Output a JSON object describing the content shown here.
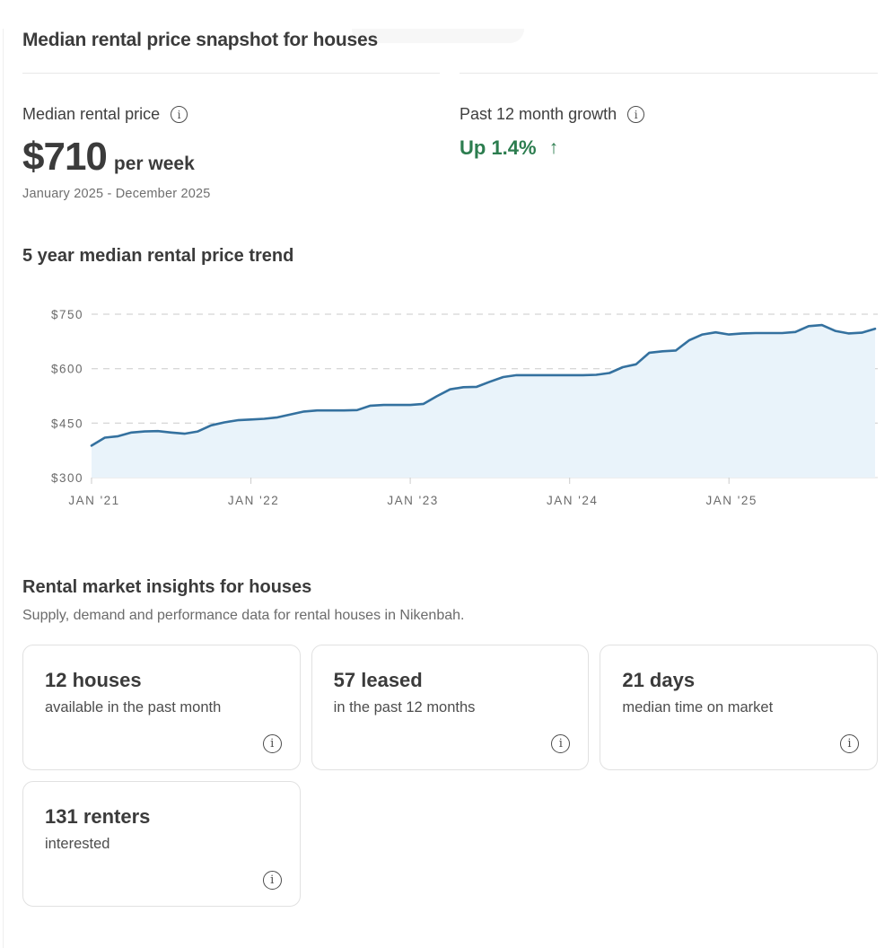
{
  "snapshot": {
    "title": "Median rental price snapshot for houses",
    "median": {
      "label": "Median rental price",
      "value": "$710",
      "unit": "per week",
      "period": "January 2025 - December 2025"
    },
    "growth": {
      "label": "Past 12 month growth",
      "value": "Up 1.4%",
      "direction": "up",
      "color": "#2c7d4f"
    }
  },
  "trend": {
    "title": "5 year median rental price trend"
  },
  "chart_data": {
    "type": "area",
    "title": "5 year median rental price trend",
    "unit": "$ per week",
    "x_start": "Jan 2021",
    "x_end": "Dec 2025",
    "x_tick_months": [
      0,
      12,
      24,
      36,
      48
    ],
    "x_tick_labels": [
      "JAN '21",
      "JAN '22",
      "JAN '23",
      "JAN '24",
      "JAN '25"
    ],
    "y_ticks": [
      750,
      600,
      450,
      300
    ],
    "y_tick_labels": [
      "$750",
      "$600",
      "$450",
      "$300"
    ],
    "ylim": [
      300,
      750
    ],
    "grid": "dashed-horizontal",
    "legend": "none",
    "line_color": "#34719f",
    "fill_color": "#e9f3fa",
    "values": [
      388,
      410,
      414,
      424,
      427,
      428,
      424,
      421,
      427,
      444,
      452,
      458,
      460,
      462,
      466,
      474,
      482,
      485,
      485,
      485,
      486,
      498,
      500,
      500,
      500,
      503,
      524,
      543,
      549,
      550,
      564,
      577,
      582,
      582,
      582,
      582,
      582,
      582,
      583,
      588,
      604,
      612,
      644,
      648,
      650,
      678,
      694,
      700,
      694,
      697,
      698,
      698,
      698,
      701,
      717,
      720,
      704,
      697,
      699,
      710
    ]
  },
  "insights": {
    "title": "Rental market insights for houses",
    "subtitle": "Supply, demand and performance data for rental houses in Nikenbah.",
    "cards": [
      {
        "value": "12 houses",
        "caption": "available in the past month"
      },
      {
        "value": "57 leased",
        "caption": "in the past 12 months"
      },
      {
        "value": "21 days",
        "caption": "median time on market"
      },
      {
        "value": "131 renters",
        "caption": "interested"
      }
    ]
  },
  "icons": {
    "info": "i",
    "growth_arrow": "↑"
  }
}
